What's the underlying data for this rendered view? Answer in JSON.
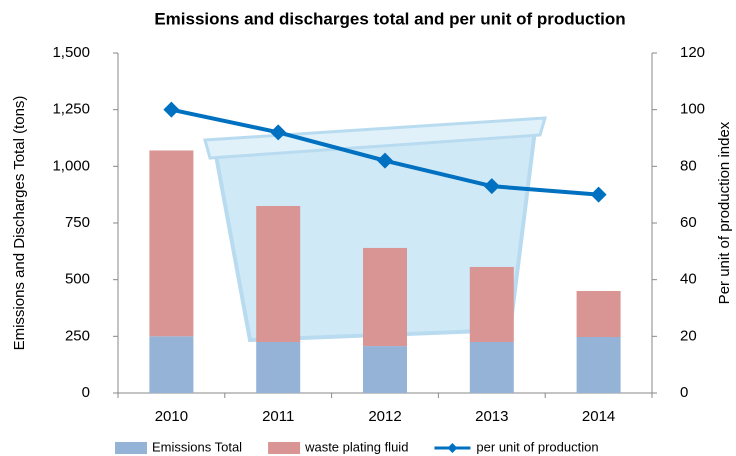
{
  "chart_data": {
    "type": "bar-line",
    "title": "Emissions and discharges total and per unit of production",
    "ylabel": "Emissions and Discharges Total  (tons)",
    "y2label": "Per unit of production index",
    "categories": [
      "2010",
      "2011",
      "2012",
      "2013",
      "2014"
    ],
    "series": [
      {
        "name": "Emissions Total",
        "color": "#95b3d7",
        "type": "bar",
        "values": [
          250,
          225,
          207,
          225,
          247
        ]
      },
      {
        "name": "waste plating fluid",
        "color": "#d99594",
        "type": "bar",
        "values": [
          820,
          600,
          433,
          331,
          203
        ]
      },
      {
        "name": "per unit of production",
        "color": "#0070c0",
        "type": "line",
        "axis": "y2",
        "values": [
          100,
          92,
          82,
          73,
          70
        ]
      }
    ],
    "stacked": true,
    "ylim": [
      0,
      1500
    ],
    "yticks": [
      0,
      250,
      500,
      750,
      {
        "value": 1000,
        "label": "1,000"
      },
      {
        "value": 1250,
        "label": "1,250"
      },
      {
        "value": 1500,
        "label": "1,500"
      }
    ],
    "y2lim": [
      0,
      120
    ],
    "y2ticks": [
      0,
      20,
      40,
      60,
      80,
      100,
      120
    ],
    "legend": "bottom"
  }
}
